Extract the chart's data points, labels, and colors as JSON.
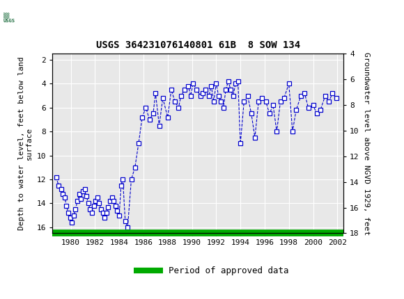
{
  "title": "USGS 364231076140801 61B  8 SOW 134",
  "ylabel_left": "Depth to water level, feet below land\nsurface",
  "ylabel_right": "Groundwater level above NGVD 1929, feet",
  "ylim_left": [
    16.5,
    1.5
  ],
  "ylim_right": [
    4,
    18
  ],
  "yticks_left": [
    2,
    4,
    6,
    8,
    10,
    12,
    14,
    16
  ],
  "yticks_right": [
    4,
    6,
    8,
    10,
    12,
    14,
    16,
    18
  ],
  "xlim": [
    1978.5,
    2002.5
  ],
  "xticks": [
    1980,
    1982,
    1984,
    1986,
    1988,
    1990,
    1992,
    1994,
    1996,
    1998,
    2000,
    2002
  ],
  "header_color": "#1a6b3c",
  "line_color": "#0000cc",
  "marker_color": "#0000cc",
  "marker_face": "#ffffff",
  "legend_line_color": "#00aa00",
  "legend_label": "Period of approved data",
  "background_color": "#ffffff",
  "plot_bg_color": "#e8e8e8",
  "data_x": [
    1978.8,
    1979.0,
    1979.2,
    1979.35,
    1979.5,
    1979.65,
    1979.8,
    1979.95,
    1980.1,
    1980.25,
    1980.4,
    1980.55,
    1980.7,
    1980.85,
    1981.0,
    1981.15,
    1981.3,
    1981.45,
    1981.6,
    1981.75,
    1981.9,
    1982.05,
    1982.2,
    1982.35,
    1982.5,
    1982.65,
    1982.8,
    1982.95,
    1983.1,
    1983.25,
    1983.4,
    1983.55,
    1983.7,
    1983.85,
    1984.0,
    1984.15,
    1984.3,
    1984.5,
    1984.7,
    1985.0,
    1985.3,
    1985.6,
    1985.9,
    1986.2,
    1986.5,
    1986.8,
    1987.0,
    1987.3,
    1987.6,
    1988.0,
    1988.3,
    1988.6,
    1988.9,
    1989.1,
    1989.4,
    1989.7,
    1989.9,
    1990.1,
    1990.4,
    1990.7,
    1990.9,
    1991.1,
    1991.4,
    1991.6,
    1991.8,
    1992.0,
    1992.2,
    1992.4,
    1992.6,
    1992.8,
    1993.0,
    1993.2,
    1993.4,
    1993.6,
    1993.8,
    1994.0,
    1994.3,
    1994.6,
    1994.9,
    1995.2,
    1995.5,
    1995.8,
    1996.1,
    1996.4,
    1996.7,
    1997.0,
    1997.3,
    1997.6,
    1998.0,
    1998.3,
    1998.6,
    1999.0,
    1999.3,
    1999.6,
    2000.0,
    2000.3,
    2000.6,
    2001.0,
    2001.3,
    2001.6,
    2001.9
  ],
  "data_y": [
    11.8,
    12.5,
    12.8,
    13.2,
    13.5,
    14.2,
    14.8,
    15.2,
    15.6,
    15.0,
    14.5,
    13.8,
    13.2,
    13.6,
    13.0,
    12.8,
    13.4,
    14.0,
    14.5,
    14.8,
    14.2,
    13.8,
    13.5,
    14.0,
    14.5,
    14.8,
    15.2,
    14.8,
    14.3,
    13.8,
    13.5,
    13.8,
    14.2,
    14.6,
    15.0,
    12.5,
    12.0,
    15.5,
    16.0,
    12.0,
    11.0,
    9.0,
    6.8,
    6.0,
    7.0,
    6.5,
    4.8,
    7.5,
    5.2,
    6.8,
    4.5,
    5.5,
    6.0,
    5.0,
    4.5,
    4.2,
    5.0,
    4.0,
    4.5,
    5.0,
    4.8,
    4.5,
    5.0,
    4.2,
    5.5,
    4.0,
    5.0,
    5.5,
    6.0,
    4.5,
    3.8,
    4.5,
    5.0,
    4.0,
    3.8,
    9.0,
    5.5,
    5.0,
    6.5,
    8.5,
    5.5,
    5.2,
    5.5,
    6.5,
    5.8,
    8.0,
    5.5,
    5.2,
    4.0,
    8.0,
    6.2,
    5.0,
    4.8,
    6.0,
    5.8,
    6.5,
    6.2,
    5.0,
    5.5,
    4.8,
    5.2
  ]
}
